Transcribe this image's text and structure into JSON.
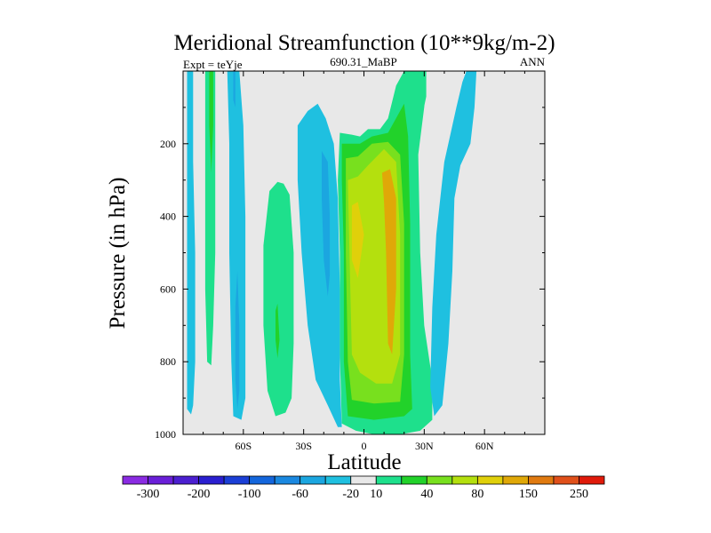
{
  "chart_data": {
    "type": "contour",
    "title": "Meridional Streamfunction (10**9kg/m-2)",
    "subtitle_left": "Expt = teYje",
    "subtitle_center": "690.31_MaBP",
    "subtitle_right": "ANN",
    "xlabel": "Latitude",
    "ylabel": "Pressure (in hPa)",
    "x_range": [
      -90,
      90
    ],
    "y_range": [
      0,
      1000
    ],
    "y_reversed": true,
    "x_ticks": [
      {
        "value": -60,
        "label": "60S"
      },
      {
        "value": -30,
        "label": "30S"
      },
      {
        "value": 0,
        "label": "0"
      },
      {
        "value": 30,
        "label": "30N"
      },
      {
        "value": 60,
        "label": "60N"
      }
    ],
    "y_ticks": [
      {
        "value": 200,
        "label": "200"
      },
      {
        "value": 400,
        "label": "400"
      },
      {
        "value": 600,
        "label": "600"
      },
      {
        "value": 800,
        "label": "800"
      },
      {
        "value": 1000,
        "label": "1000"
      }
    ],
    "colorbar": {
      "colors": [
        "#8a2be2",
        "#6a1fd8",
        "#4b1fd0",
        "#2a1fd0",
        "#1b3fd6",
        "#1466dc",
        "#1a88e0",
        "#1ba6e0",
        "#1fc0e0",
        "#e8e8e8",
        "#1ee08c",
        "#22d22a",
        "#78e01e",
        "#b4e00e",
        "#e0d00a",
        "#e0a808",
        "#e07a10",
        "#e0501a",
        "#e01a0a"
      ],
      "labels": [
        "-300",
        "-200",
        "-100",
        "-60",
        "-20",
        "10",
        "40",
        "80",
        "150",
        "250"
      ]
    },
    "contours": [
      {
        "name": "sh-polar-band-negative",
        "level": -20,
        "color": "#1fc0e0",
        "points": [
          [
            -88,
            0
          ],
          [
            -85,
            0
          ],
          [
            -85,
            250
          ],
          [
            -84,
            500
          ],
          [
            -84,
            800
          ],
          [
            -85,
            920
          ],
          [
            -86,
            945
          ],
          [
            -88,
            930
          ],
          [
            -88,
            700
          ],
          [
            -88,
            400
          ]
        ]
      },
      {
        "name": "sh-polar-positive-band",
        "level": 10,
        "color": "#1ee08c",
        "points": [
          [
            -79,
            0
          ],
          [
            -74,
            0
          ],
          [
            -74,
            200
          ],
          [
            -74,
            500
          ],
          [
            -75,
            700
          ],
          [
            -76,
            810
          ],
          [
            -78,
            800
          ],
          [
            -79,
            600
          ],
          [
            -79,
            300
          ]
        ]
      },
      {
        "name": "sh-polar-positive-core",
        "level": 40,
        "color": "#22d22a",
        "points": [
          [
            -77,
            0
          ],
          [
            -75,
            0
          ],
          [
            -75,
            150
          ],
          [
            -76,
            280
          ],
          [
            -77,
            150
          ]
        ]
      },
      {
        "name": "sh-subpolar-band-negative",
        "level": -20,
        "color": "#1fc0e0",
        "points": [
          [
            -68,
            0
          ],
          [
            -62,
            0
          ],
          [
            -60,
            150
          ],
          [
            -59,
            400
          ],
          [
            -59,
            700
          ],
          [
            -59,
            900
          ],
          [
            -61,
            960
          ],
          [
            -65,
            950
          ],
          [
            -66,
            800
          ],
          [
            -67,
            500
          ],
          [
            -67,
            200
          ]
        ]
      },
      {
        "name": "sh-subpolar-core",
        "level": -60,
        "color": "#1ba6e0",
        "points": [
          [
            -65,
            0
          ],
          [
            -64,
            0
          ],
          [
            -64,
            100
          ],
          [
            -65,
            80
          ]
        ]
      },
      {
        "name": "sh-subpolar-lower-core",
        "level": -60,
        "color": "#1ba6e0",
        "points": [
          [
            -63,
            550
          ],
          [
            -62,
            700
          ],
          [
            -62,
            880
          ],
          [
            -63,
            930
          ],
          [
            -64,
            850
          ],
          [
            -64,
            650
          ]
        ]
      },
      {
        "name": "sh-ferrel-positive",
        "level": 10,
        "color": "#1ee08c",
        "points": [
          [
            -40,
            310
          ],
          [
            -37,
            340
          ],
          [
            -35,
            500
          ],
          [
            -35,
            750
          ],
          [
            -36,
            900
          ],
          [
            -39,
            940
          ],
          [
            -44,
            950
          ],
          [
            -48,
            880
          ],
          [
            -50,
            700
          ],
          [
            -50,
            480
          ],
          [
            -47,
            330
          ],
          [
            -43,
            305
          ]
        ]
      },
      {
        "name": "sh-ferrel-core",
        "level": 40,
        "color": "#22d22a",
        "points": [
          [
            -43,
            640
          ],
          [
            -42,
            740
          ],
          [
            -43,
            790
          ],
          [
            -44,
            740
          ],
          [
            -44,
            660
          ]
        ]
      },
      {
        "name": "sh-hadley-negative",
        "level": -20,
        "color": "#1fc0e0",
        "points": [
          [
            -28,
            110
          ],
          [
            -23,
            90
          ],
          [
            -19,
            130
          ],
          [
            -15,
            200
          ],
          [
            -13,
            350
          ],
          [
            -12,
            600
          ],
          [
            -12,
            850
          ],
          [
            -11,
            980
          ],
          [
            -13,
            980
          ],
          [
            -18,
            920
          ],
          [
            -24,
            850
          ],
          [
            -28,
            700
          ],
          [
            -31,
            500
          ],
          [
            -33,
            300
          ],
          [
            -33,
            150
          ]
        ]
      },
      {
        "name": "sh-hadley-core",
        "level": -60,
        "color": "#1ba6e0",
        "points": [
          [
            -21,
            220
          ],
          [
            -18,
            250
          ],
          [
            -17,
            400
          ],
          [
            -17,
            560
          ],
          [
            -18,
            620
          ],
          [
            -20,
            520
          ],
          [
            -21,
            350
          ]
        ]
      },
      {
        "name": "equatorial-positive",
        "level": 10,
        "color": "#1ee08c",
        "points": [
          [
            -12,
            170
          ],
          [
            -6,
            175
          ],
          [
            -2,
            180
          ],
          [
            2,
            160
          ],
          [
            8,
            160
          ],
          [
            12,
            130
          ],
          [
            16,
            40
          ],
          [
            20,
            0
          ],
          [
            30,
            0
          ],
          [
            30,
            100
          ],
          [
            27,
            230
          ],
          [
            28,
            500
          ],
          [
            30,
            700
          ],
          [
            34,
            850
          ],
          [
            34,
            960
          ],
          [
            28,
            990
          ],
          [
            18,
            1000
          ],
          [
            5,
            1000
          ],
          [
            -4,
            990
          ],
          [
            -11,
            970
          ],
          [
            -12,
            780
          ],
          [
            -12,
            500
          ],
          [
            -13,
            300
          ]
        ]
      },
      {
        "name": "equatorial-level-40",
        "level": 40,
        "color": "#22d22a",
        "points": [
          [
            -11,
            200
          ],
          [
            -2,
            200
          ],
          [
            4,
            180
          ],
          [
            12,
            170
          ],
          [
            20,
            90
          ],
          [
            22,
            180
          ],
          [
            23,
            420
          ],
          [
            23,
            780
          ],
          [
            24,
            930
          ],
          [
            20,
            950
          ],
          [
            5,
            960
          ],
          [
            -8,
            950
          ],
          [
            -10,
            800
          ],
          [
            -10,
            500
          ],
          [
            -11,
            300
          ]
        ]
      },
      {
        "name": "equatorial-level-80",
        "level": 80,
        "color": "#78e01e",
        "points": [
          [
            -9,
            240
          ],
          [
            -3,
            235
          ],
          [
            4,
            200
          ],
          [
            12,
            195
          ],
          [
            18,
            230
          ],
          [
            20,
            420
          ],
          [
            20,
            780
          ],
          [
            18,
            910
          ],
          [
            5,
            915
          ],
          [
            -6,
            905
          ],
          [
            -8,
            800
          ],
          [
            -9,
            500
          ]
        ]
      },
      {
        "name": "equatorial-level-150",
        "level": 150,
        "color": "#b4e00e",
        "points": [
          [
            -8,
            300
          ],
          [
            -3,
            290
          ],
          [
            2,
            260
          ],
          [
            10,
            215
          ],
          [
            16,
            250
          ],
          [
            18,
            450
          ],
          [
            18,
            780
          ],
          [
            14,
            860
          ],
          [
            6,
            860
          ],
          [
            -2,
            830
          ],
          [
            -6,
            780
          ],
          [
            -7,
            550
          ]
        ]
      },
      {
        "name": "equatorial-level-250",
        "level": 250,
        "color": "#e0d00a",
        "points": [
          [
            -6,
            370
          ],
          [
            -3,
            360
          ],
          [
            0,
            450
          ],
          [
            -3,
            570
          ],
          [
            -6,
            520
          ]
        ]
      },
      {
        "name": "equatorial-max",
        "level": 300,
        "color": "#e0a808",
        "points": [
          [
            9,
            280
          ],
          [
            13,
            270
          ],
          [
            16,
            350
          ],
          [
            16,
            600
          ],
          [
            14,
            780
          ],
          [
            12,
            750
          ],
          [
            11,
            500
          ],
          [
            10,
            360
          ]
        ]
      },
      {
        "name": "nh-upper-positive",
        "level": 10,
        "color": "#1ee08c",
        "points": [
          [
            22,
            0
          ],
          [
            31,
            0
          ],
          [
            31,
            70
          ],
          [
            28,
            150
          ],
          [
            25,
            120
          ]
        ]
      },
      {
        "name": "nh-negative-band",
        "level": -20,
        "color": "#1fc0e0",
        "points": [
          [
            51,
            0
          ],
          [
            56,
            0
          ],
          [
            55,
            100
          ],
          [
            53,
            200
          ],
          [
            48,
            260
          ],
          [
            45,
            350
          ],
          [
            44,
            550
          ],
          [
            42,
            750
          ],
          [
            39,
            920
          ],
          [
            35,
            950
          ],
          [
            33,
            870
          ],
          [
            34,
            650
          ],
          [
            36,
            450
          ],
          [
            40,
            250
          ],
          [
            46,
            100
          ],
          [
            49,
            30
          ]
        ]
      }
    ]
  }
}
